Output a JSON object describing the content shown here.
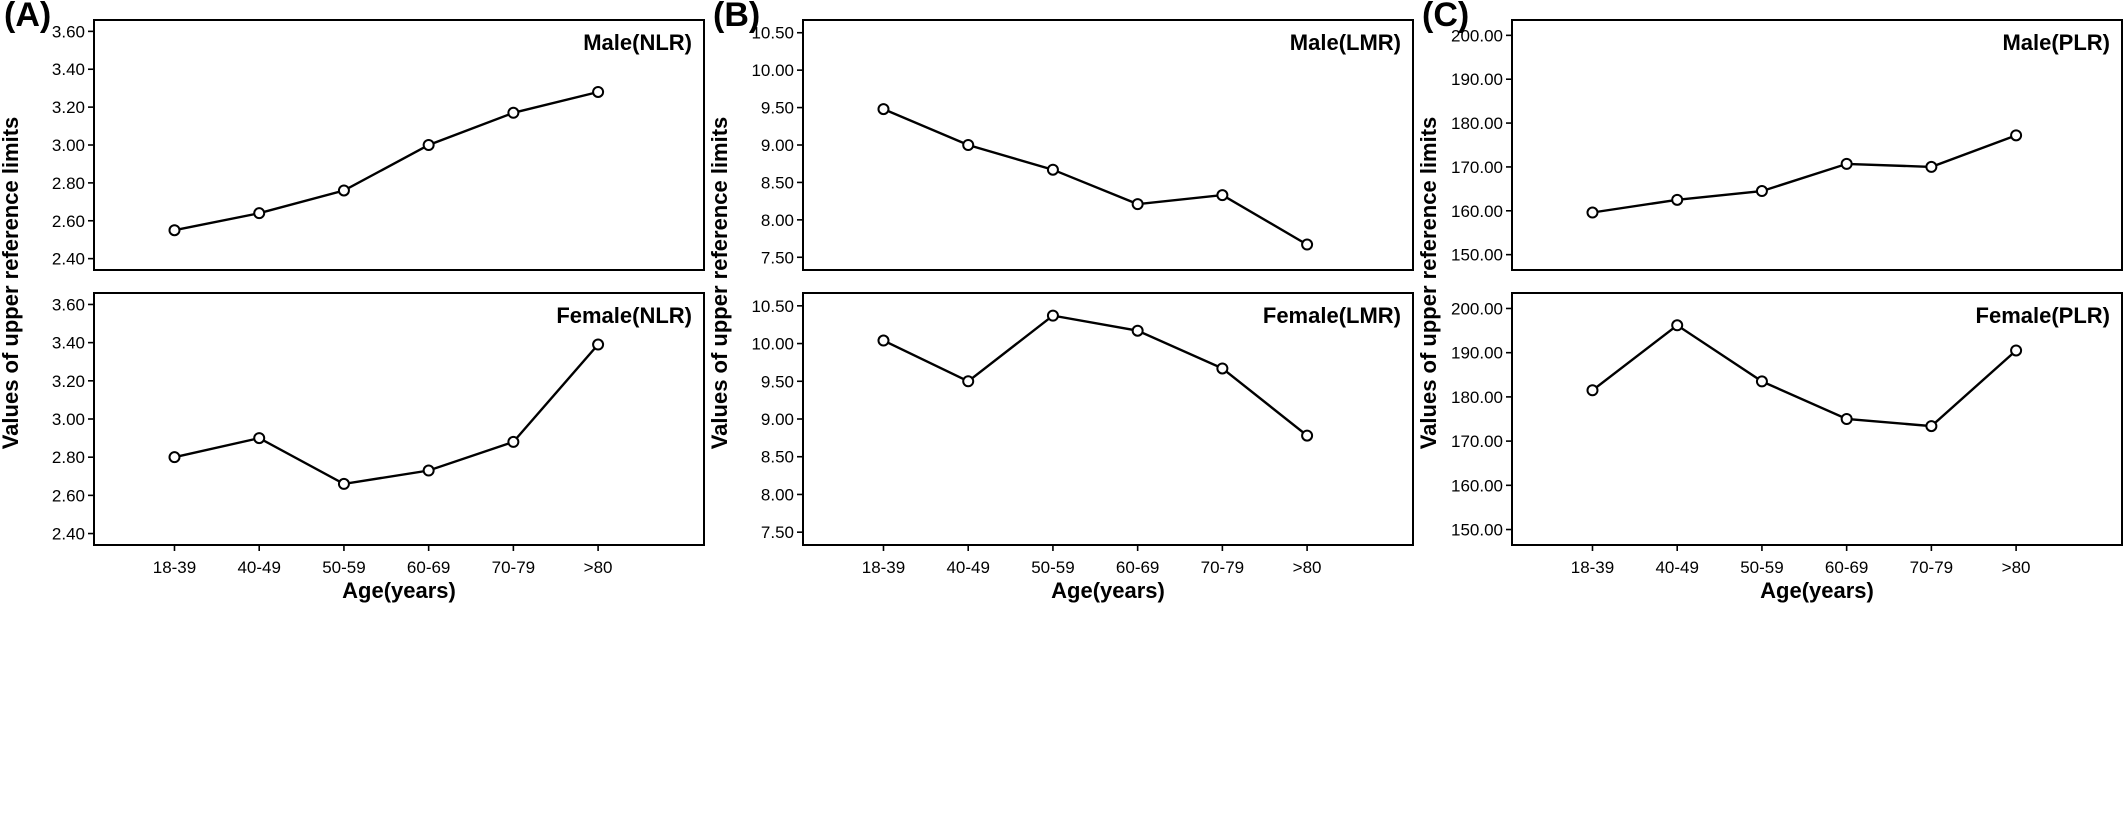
{
  "figure": {
    "xlabel": "Age(years)",
    "ylabel": "Values of upper reference limits"
  },
  "chart_data": [
    {
      "type": "line",
      "panel": "(A)",
      "xlabel": "Age(years)",
      "ylabel": "Values of upper reference limits",
      "categories": [
        "18-39",
        "40-49",
        "50-59",
        "60-69",
        "70-79",
        ">80"
      ],
      "subplots": [
        {
          "title": "Male(NLR)",
          "ylim": [
            2.34,
            3.66
          ],
          "yticks": [
            "2.40",
            "2.60",
            "2.80",
            "3.00",
            "3.20",
            "3.40",
            "3.60"
          ],
          "values": [
            2.55,
            2.64,
            2.76,
            3.0,
            3.17,
            3.28
          ]
        },
        {
          "title": "Female(NLR)",
          "ylim": [
            2.34,
            3.66
          ],
          "yticks": [
            "2.40",
            "2.60",
            "2.80",
            "3.00",
            "3.20",
            "3.40",
            "3.60"
          ],
          "values": [
            2.8,
            2.9,
            2.66,
            2.73,
            2.88,
            3.39
          ]
        }
      ]
    },
    {
      "type": "line",
      "panel": "(B)",
      "xlabel": "Age(years)",
      "ylabel": "Values of upper reference limits",
      "categories": [
        "18-39",
        "40-49",
        "50-59",
        "60-69",
        "70-79",
        ">80"
      ],
      "subplots": [
        {
          "title": "Male(LMR)",
          "ylim": [
            7.33,
            10.67
          ],
          "yticks": [
            "7.50",
            "8.00",
            "8.50",
            "9.00",
            "9.50",
            "10.00",
            "10.50"
          ],
          "values": [
            9.48,
            9.0,
            8.67,
            8.21,
            8.33,
            7.67
          ]
        },
        {
          "title": "Female(LMR)",
          "ylim": [
            7.33,
            10.67
          ],
          "yticks": [
            "7.50",
            "8.00",
            "8.50",
            "9.00",
            "9.50",
            "10.00",
            "10.50"
          ],
          "values": [
            10.04,
            9.5,
            10.37,
            10.17,
            9.67,
            8.78
          ]
        }
      ]
    },
    {
      "type": "line",
      "panel": "(C)",
      "xlabel": "Age(years)",
      "ylabel": "Values of upper reference limits",
      "categories": [
        "18-39",
        "40-49",
        "50-59",
        "60-69",
        "70-79",
        ">80"
      ],
      "subplots": [
        {
          "title": "Male(PLR)",
          "ylim": [
            146.5,
            203.5
          ],
          "yticks": [
            "150.00",
            "160.00",
            "170.00",
            "180.00",
            "190.00",
            "200.00"
          ],
          "values": [
            159.6,
            162.5,
            164.5,
            170.7,
            170.0,
            177.2
          ]
        },
        {
          "title": "Female(PLR)",
          "ylim": [
            146.5,
            203.5
          ],
          "yticks": [
            "150.00",
            "160.00",
            "170.00",
            "180.00",
            "190.00",
            "200.00"
          ],
          "values": [
            181.5,
            196.2,
            183.5,
            175.0,
            173.4,
            190.5
          ]
        }
      ]
    }
  ]
}
